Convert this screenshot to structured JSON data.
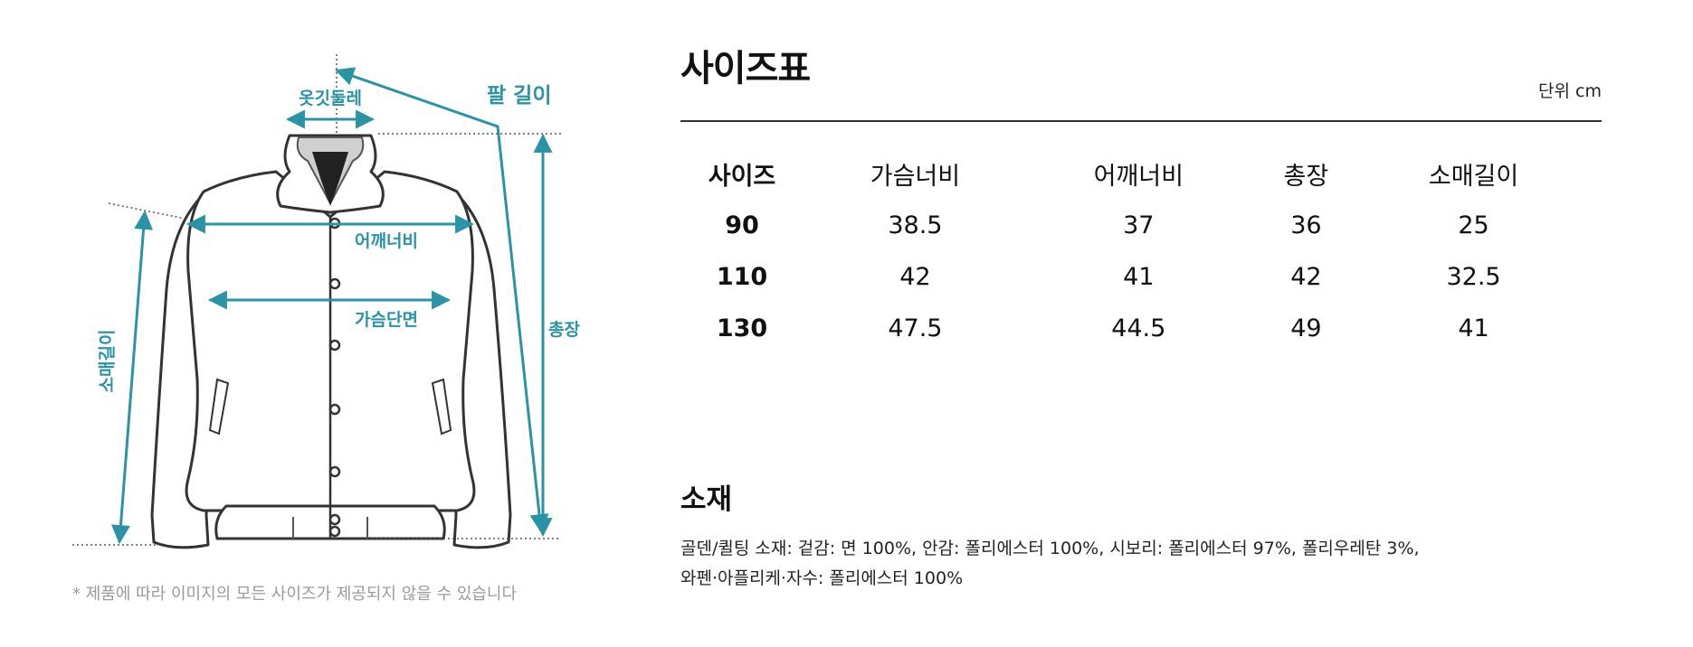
{
  "diagram": {
    "labels": {
      "neck": "옷깃둘레",
      "arm": "팔 길이",
      "shoulder": "어깨너비",
      "chest": "가슴단면",
      "total": "총장",
      "sleeve": "소매길이"
    },
    "note": "* 제품에 따라 이미지의 모든 사이즈가 제공되지 않을 수 있습니다"
  },
  "size_table": {
    "title": "사이즈표",
    "unit": "단위 cm",
    "headers": [
      "사이즈",
      "가슴너비",
      "어깨너비",
      "총장",
      "소매길이"
    ],
    "rows": [
      [
        "90",
        "38.5",
        "37",
        "36",
        "25"
      ],
      [
        "110",
        "42",
        "41",
        "42",
        "32.5"
      ],
      [
        "130",
        "47.5",
        "44.5",
        "49",
        "41"
      ]
    ]
  },
  "material": {
    "title": "소재",
    "text": "골덴/퀼팅 소재: 겉감: 면 100%, 안감: 폴리에스터 100%, 시보리: 폴리에스터 97%, 폴리우레탄 3%, 와펜·아플리케·자수: 폴리에스터 100%"
  },
  "colors": {
    "accent": "#2a93a5",
    "note": "#9a9a9a",
    "text": "#111111"
  }
}
